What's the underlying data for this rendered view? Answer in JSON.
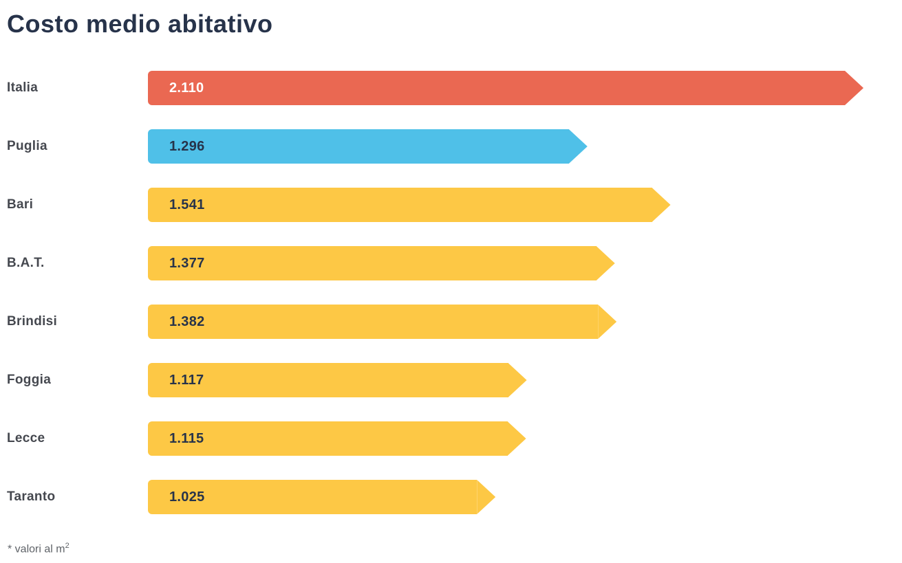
{
  "title": "Costo medio abitativo",
  "footnote": {
    "text": "* valori al m",
    "sup": "2"
  },
  "colors": {
    "background": "#FFFFFF",
    "title_text": "#27334A",
    "label_text": "#45484F",
    "value_on_red_bar": "#FFFFFF",
    "value_on_light_bars": "#27334A",
    "bar_italia": "#EA6852",
    "bar_puglia": "#4FC0E8",
    "bar_provinces": "#FDC845",
    "footnote_text": "#5F6368"
  },
  "chart_data": {
    "type": "bar",
    "orientation": "horizontal",
    "title": "Costo medio abitativo",
    "categories": [
      "Italia",
      "Puglia",
      "Bari",
      "B.A.T.",
      "Brindisi",
      "Foggia",
      "Lecce",
      "Taranto"
    ],
    "values": [
      2110,
      1296,
      1541,
      1377,
      1382,
      1117,
      1115,
      1025
    ],
    "value_labels": [
      "2.110",
      "1.296",
      "1.541",
      "1.377",
      "1.382",
      "1.117",
      "1.115",
      "1.025"
    ],
    "bar_colors": [
      "#EA6852",
      "#4FC0E8",
      "#FDC845",
      "#FDC845",
      "#FDC845",
      "#FDC845",
      "#FDC845",
      "#FDC845"
    ],
    "value_label_colors": [
      "#FFFFFF",
      "#27334A",
      "#27334A",
      "#27334A",
      "#27334A",
      "#27334A",
      "#27334A",
      "#27334A"
    ],
    "bar_shape": "right-pointing-arrow",
    "xlim": [
      0,
      2110
    ],
    "grid": false,
    "legend": false,
    "footnote": "* valori al m²"
  }
}
